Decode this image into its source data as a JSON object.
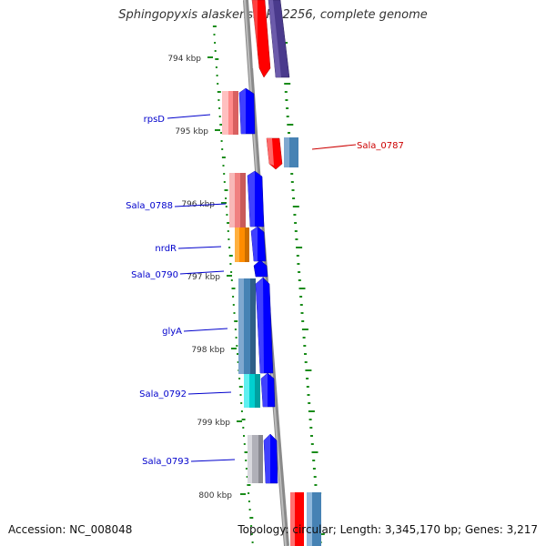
{
  "title": "Sphingopyxis alaskensis RB2256, complete genome",
  "accession": "Accession: NC_008048",
  "topology": "Topology: circular; Length: 3,345,170 bp; Genes: 3,217",
  "ticks": [
    "794 kbp",
    "795 kbp",
    "796 kbp",
    "797 kbp",
    "798 kbp",
    "799 kbp",
    "800 kbp"
  ],
  "gene_labels": [
    {
      "text": "rpsD",
      "color": "#0000cc"
    },
    {
      "text": "Sala_0787",
      "color": "#cc0000"
    },
    {
      "text": "Sala_0788",
      "color": "#0000cc"
    },
    {
      "text": "nrdR",
      "color": "#0000cc"
    },
    {
      "text": "Sala_0790",
      "color": "#0000cc"
    },
    {
      "text": "glyA",
      "color": "#0000cc"
    },
    {
      "text": "Sala_0792",
      "color": "#0000cc"
    },
    {
      "text": "Sala_0793",
      "color": "#0000cc"
    }
  ],
  "colors": {
    "backbone": "#8a8a8a",
    "tick": "#1a8c1a",
    "forward_gene": "#0000ff",
    "reverse_gene": "#ff0000",
    "label_blue": "#0000cc",
    "label_red": "#cc0000"
  }
}
